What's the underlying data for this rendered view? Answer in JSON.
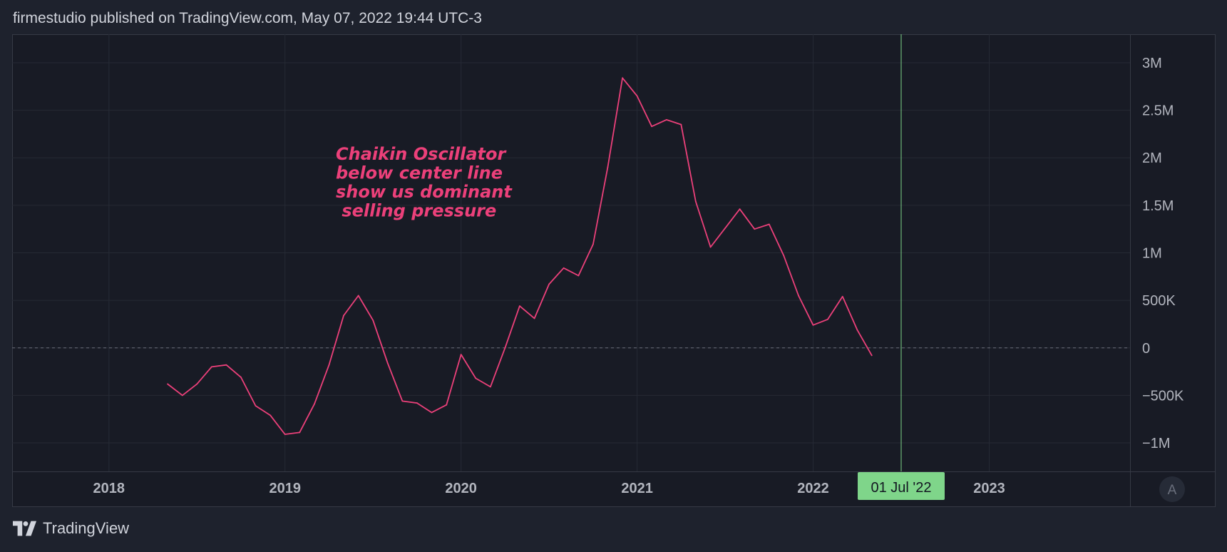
{
  "header": {
    "text": "firmestudio published on TradingView.com, May 07, 2022 19:44 UTC-3"
  },
  "footer": {
    "brand": "TradingView",
    "logo_icon": "tradingview-logo-icon"
  },
  "auto_scale_button": {
    "label": "A"
  },
  "colors": {
    "background": "#1e222d",
    "plot_background": "#181b25",
    "grid": "#262a35",
    "series": "#ec407a",
    "annotation": "#ec407a",
    "crosshair": "#7fd58a",
    "axis_text": "#b2b5be"
  },
  "chart_data": {
    "type": "line",
    "title": "",
    "xlabel": "",
    "ylabel": "",
    "annotation": [
      "Chaikin Oscillator",
      "below center line",
      "show us dominant",
      " selling pressure"
    ],
    "x_ticks": [
      2018,
      2019,
      2020,
      2021,
      2022,
      2023
    ],
    "x_tick_labels": [
      "2018",
      "2019",
      "2020",
      "2021",
      "2022",
      "2023"
    ],
    "xlim": [
      2017.45,
      2023.8
    ],
    "y_ticks": [
      3000000,
      2500000,
      2000000,
      1500000,
      1000000,
      500000,
      0,
      -500000,
      -1000000
    ],
    "y_tick_labels": [
      "3M",
      "2.5M",
      "2M",
      "1.5M",
      "1M",
      "500K",
      "0",
      "−500K",
      "−1M"
    ],
    "ylim": [
      -1300000,
      3300000
    ],
    "zero_line": true,
    "crosshair": {
      "x": 2022.5,
      "label": "01 Jul '22"
    },
    "series": [
      {
        "x": [
          2018.333,
          2018.417,
          2018.5,
          2018.583,
          2018.667,
          2018.75,
          2018.833,
          2018.917,
          2019.0,
          2019.083,
          2019.167,
          2019.25,
          2019.333,
          2019.417,
          2019.5,
          2019.583,
          2019.667,
          2019.75,
          2019.833,
          2019.917,
          2020.0,
          2020.083,
          2020.167,
          2020.25,
          2020.333,
          2020.417,
          2020.5,
          2020.583,
          2020.667,
          2020.75,
          2020.833,
          2020.917,
          2021.0,
          2021.083,
          2021.167,
          2021.25,
          2021.333,
          2021.417,
          2021.5,
          2021.583,
          2021.667,
          2021.75,
          2021.833,
          2021.917,
          2022.0,
          2022.083,
          2022.167,
          2022.25,
          2022.333
        ],
        "values": [
          -380000,
          -500000,
          -380000,
          -200000,
          -180000,
          -310000,
          -610000,
          -710000,
          -910000,
          -890000,
          -590000,
          -180000,
          340000,
          550000,
          290000,
          -160000,
          -560000,
          -580000,
          -680000,
          -600000,
          -70000,
          -320000,
          -410000,
          0,
          440000,
          310000,
          670000,
          840000,
          760000,
          1090000,
          1900000,
          2840000,
          2650000,
          2330000,
          2400000,
          2350000,
          1540000,
          1060000,
          1260000,
          1460000,
          1250000,
          1300000,
          970000,
          550000,
          240000,
          300000,
          540000,
          190000,
          -80000
        ]
      }
    ]
  }
}
